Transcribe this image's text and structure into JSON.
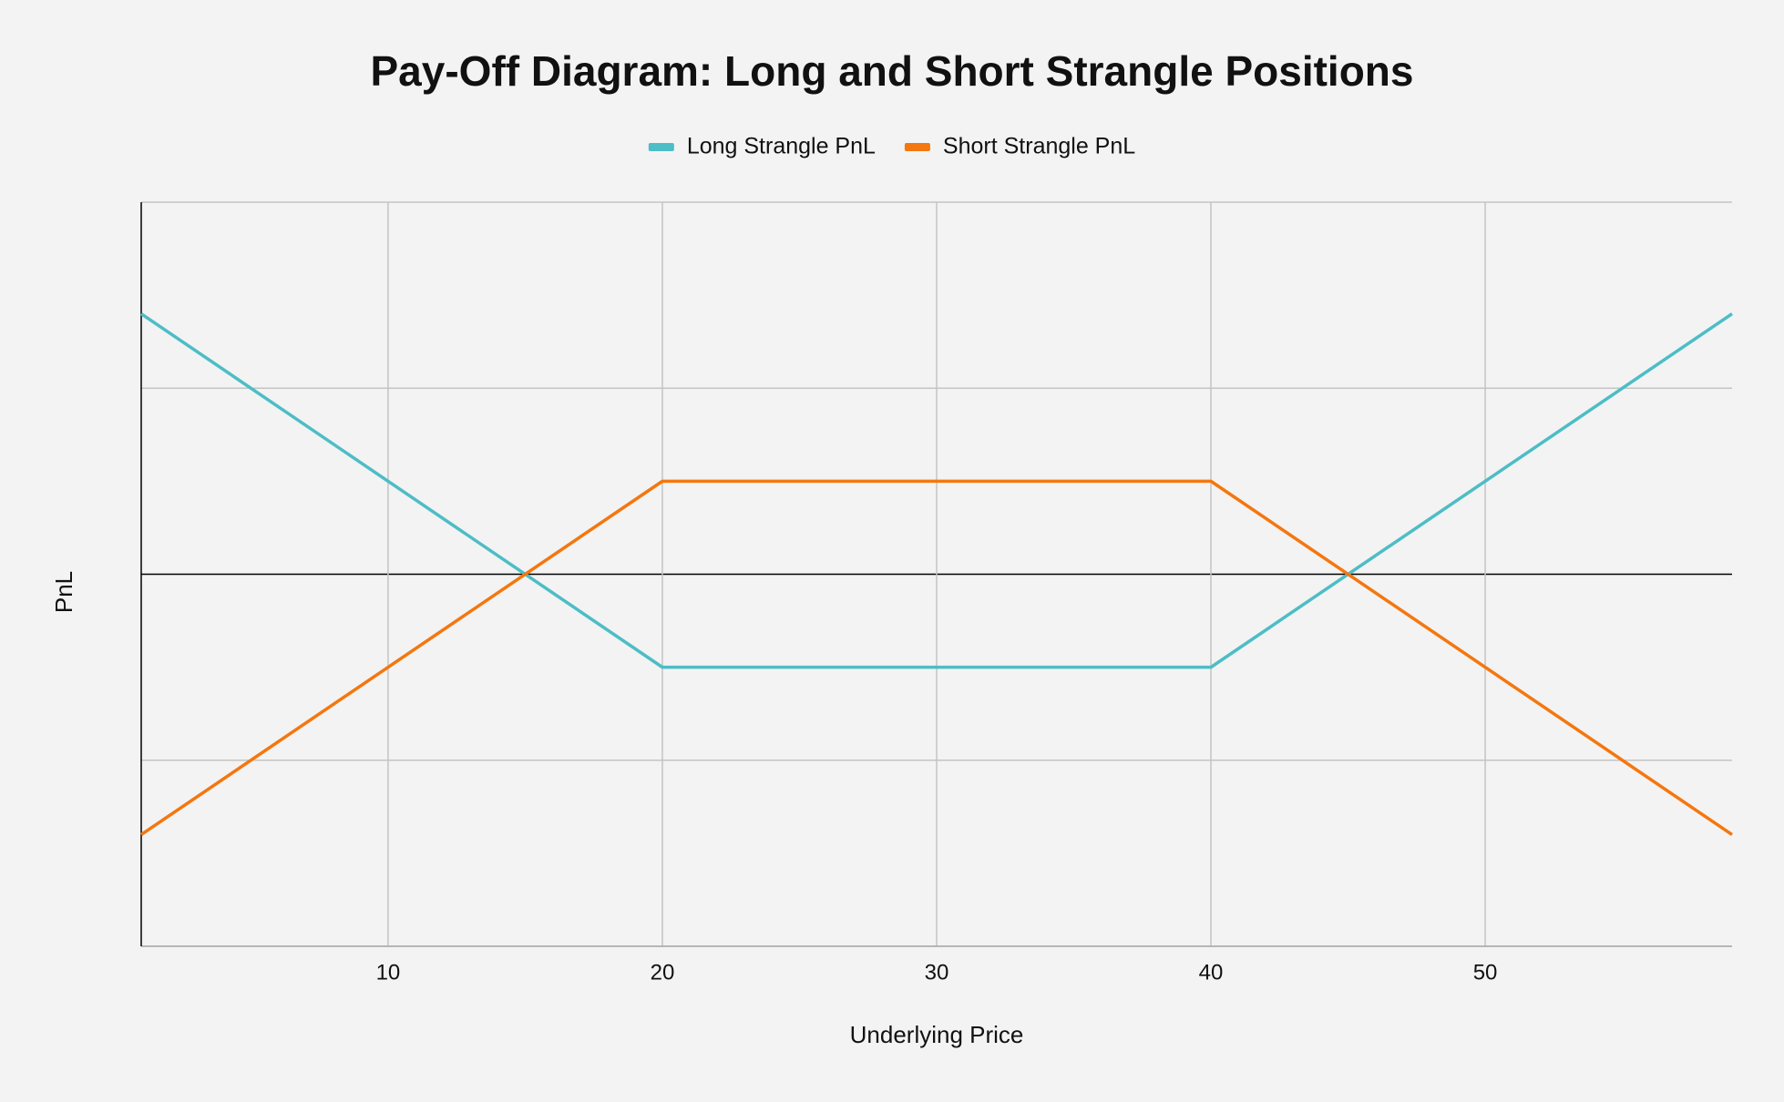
{
  "chart_data": {
    "type": "line",
    "title": "Pay-Off Diagram: Long and Short Strangle Positions",
    "x_label": "Underlying Price",
    "y_label": "PnL",
    "x": [
      1,
      20,
      40,
      59
    ],
    "series": [
      {
        "name": "Long Strangle PnL",
        "color": "#4dbdc6",
        "values": [
          14,
          -5,
          -5,
          14
        ]
      },
      {
        "name": "Short Strangle PnL",
        "color": "#f4770f",
        "values": [
          -14,
          5,
          5,
          -14
        ]
      }
    ],
    "xlim": [
      1,
      59
    ],
    "xticks": [
      10,
      20,
      30,
      40,
      50
    ],
    "ylim": [
      -20,
      20
    ],
    "yticks": [
      -20,
      -10,
      0,
      10,
      20
    ],
    "ytick_labels": false,
    "grid": true,
    "legend": "top"
  }
}
